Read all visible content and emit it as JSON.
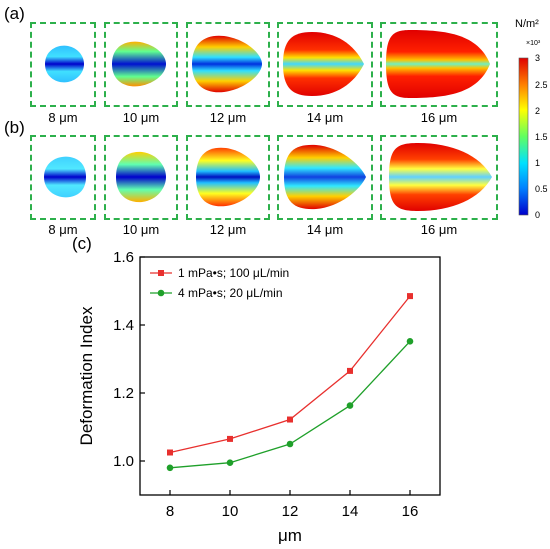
{
  "panels": {
    "a": "(a)",
    "b": "(b)",
    "c": "(c)"
  },
  "row_a_sizes": [
    "8 μm",
    "10 μm",
    "12 μm",
    "14 μm",
    "16 μm"
  ],
  "row_b_sizes": [
    "8 μm",
    "10 μm",
    "12 μm",
    "14 μm",
    "16 μm"
  ],
  "colorbar": {
    "unit": "N/m²",
    "multiplier": "×10³",
    "ticks": [
      "3",
      "2.5",
      "2",
      "1.5",
      "1",
      "0.5",
      "0"
    ],
    "colors": [
      "#0000cc",
      "#0080ff",
      "#00e0ff",
      "#60ff60",
      "#ffff00",
      "#ff8000",
      "#e00000"
    ]
  },
  "chart_data": {
    "type": "line",
    "xlabel": "μm",
    "ylabel": "Deformation Index",
    "x": [
      8,
      10,
      12,
      14,
      16
    ],
    "xlim": [
      7,
      17
    ],
    "ylim": [
      0.9,
      1.6
    ],
    "xticks": [
      "8",
      "10",
      "12",
      "14",
      "16"
    ],
    "yticks": [
      "1.0",
      "1.2",
      "1.4",
      "1.6"
    ],
    "series": [
      {
        "name": "1 mPa•s; 100 μL/min",
        "color": "#e8302e",
        "marker": "square",
        "values": [
          1.025,
          1.065,
          1.122,
          1.265,
          1.485
        ]
      },
      {
        "name": "4 mPa•s; 20 μL/min",
        "color": "#1fa02a",
        "marker": "circle",
        "values": [
          0.98,
          0.995,
          1.05,
          1.163,
          1.352
        ]
      }
    ],
    "legend": "top-left"
  }
}
